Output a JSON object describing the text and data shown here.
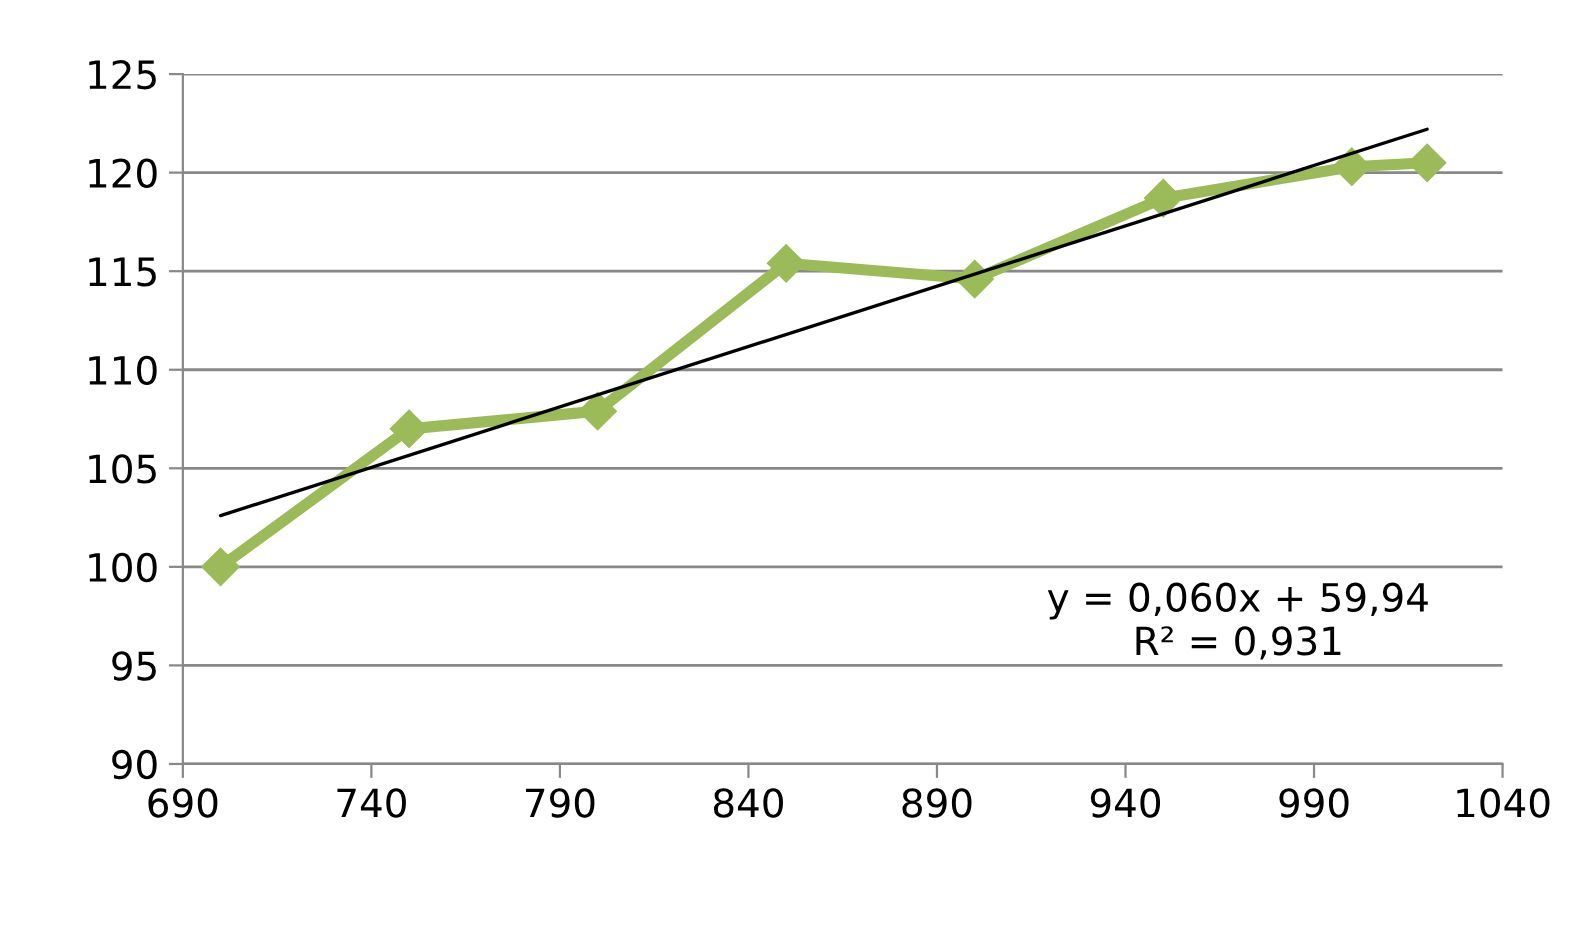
{
  "chart_data": {
    "type": "line",
    "x": [
      700,
      750,
      800,
      850,
      900,
      950,
      1000,
      1020
    ],
    "series": [
      {
        "color": "#9bbb59",
        "values": [
          100,
          107,
          107.9,
          115.4,
          114.6,
          118.7,
          120.3,
          120.5
        ],
        "marker": "diamond"
      },
      {
        "type": "line",
        "color": "#000000",
        "x": [
          700,
          1020
        ],
        "values": [
          102.6,
          122.2
        ],
        "marker": "none"
      }
    ],
    "xlim": [
      690,
      1040
    ],
    "xticks": [
      690,
      740,
      790,
      840,
      890,
      940,
      990,
      1040
    ],
    "ylim": [
      90,
      125
    ],
    "yticks": [
      90,
      95,
      100,
      105,
      110,
      115,
      120,
      125
    ],
    "grid": "y",
    "legend": false,
    "annotations": [
      "y = 0,060x + 59,94\nR² = 0,931"
    ]
  }
}
